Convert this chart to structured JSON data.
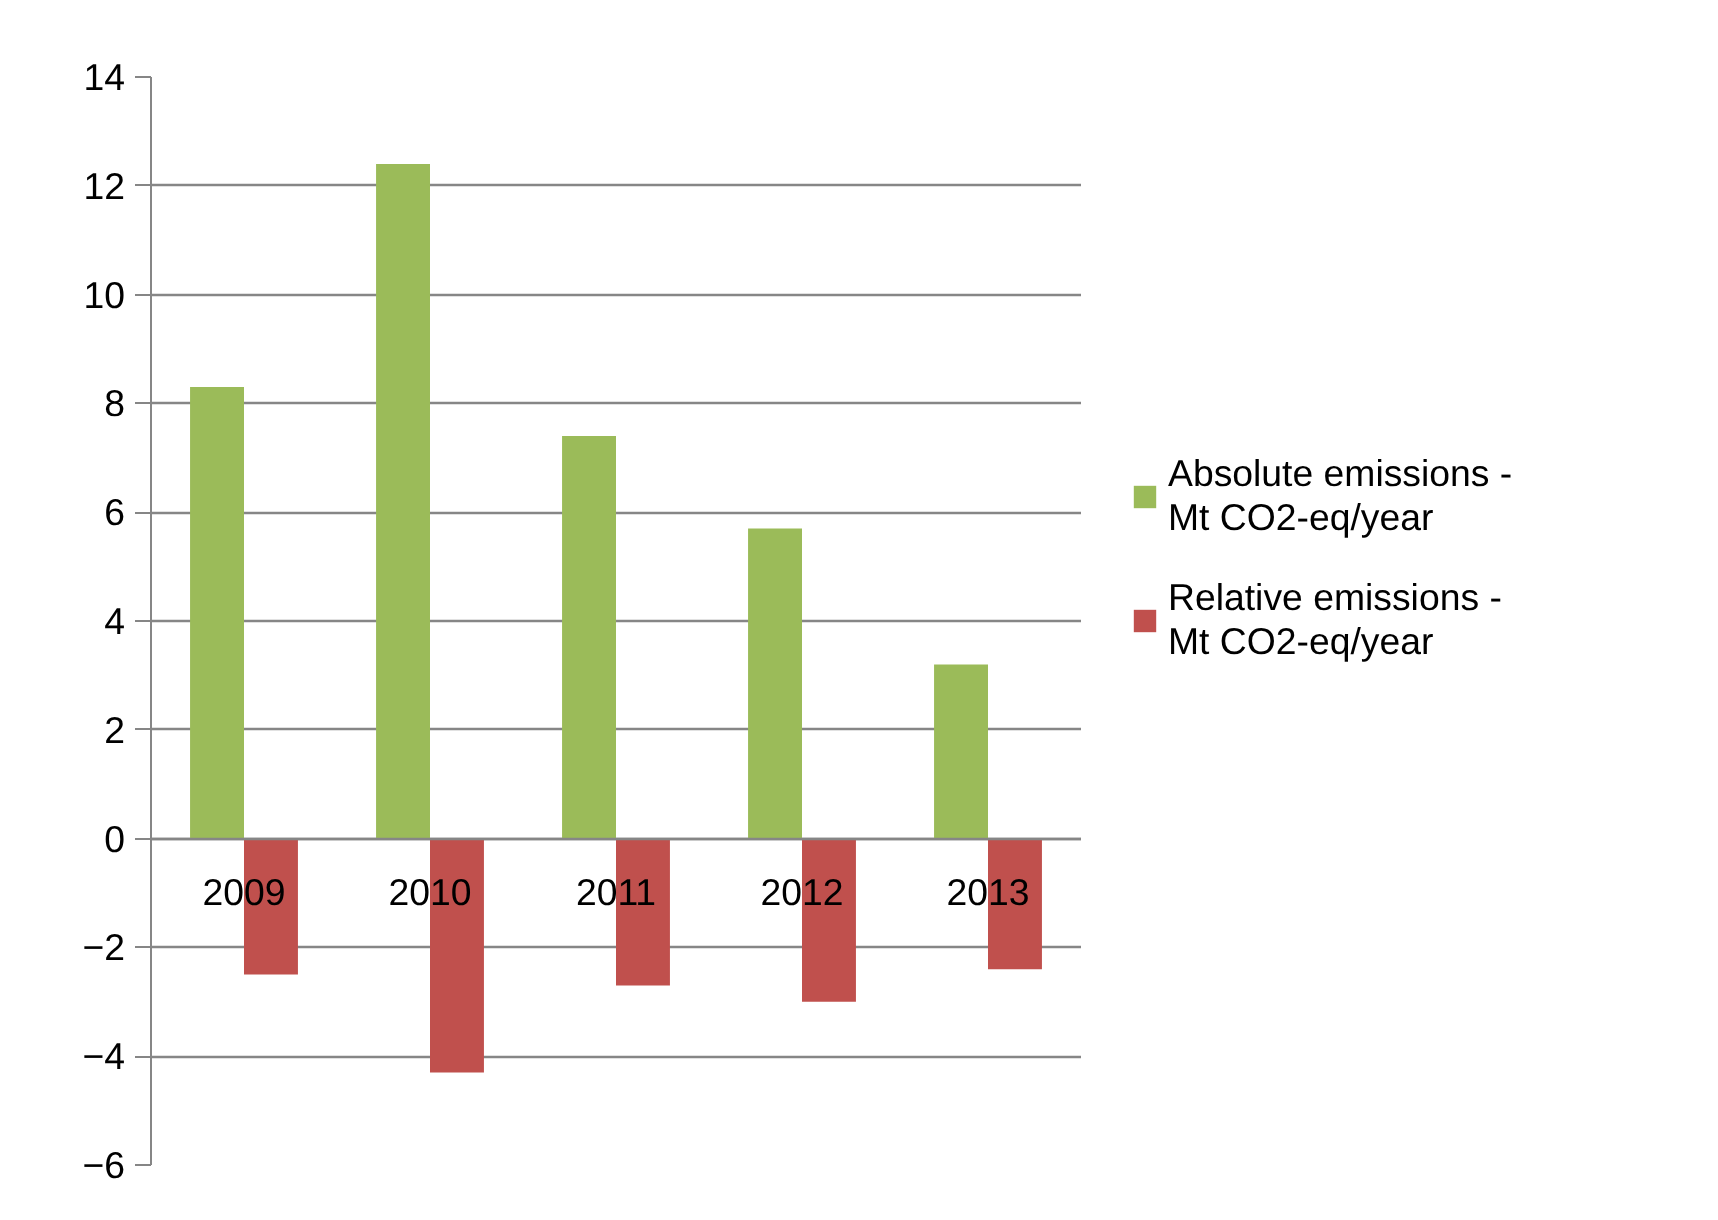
{
  "chart_data": {
    "type": "bar",
    "categories": [
      "2009",
      "2010",
      "2011",
      "2012",
      "2013"
    ],
    "series": [
      {
        "name": "Absolute emissions - Mt CO2-eq/year",
        "color": "#9bbb59",
        "values": [
          8.3,
          12.4,
          7.4,
          5.7,
          3.2
        ]
      },
      {
        "name": "Relative emissions - Mt CO2-eq/year",
        "color": "#c0504d",
        "values": [
          -2.5,
          -4.3,
          -2.7,
          -3.0,
          -2.4
        ]
      }
    ],
    "ylim": [
      -6,
      14
    ],
    "yticks": [
      -6,
      -4,
      -2,
      0,
      2,
      4,
      6,
      8,
      10,
      12,
      14
    ],
    "grid": "y",
    "legend": "right"
  }
}
